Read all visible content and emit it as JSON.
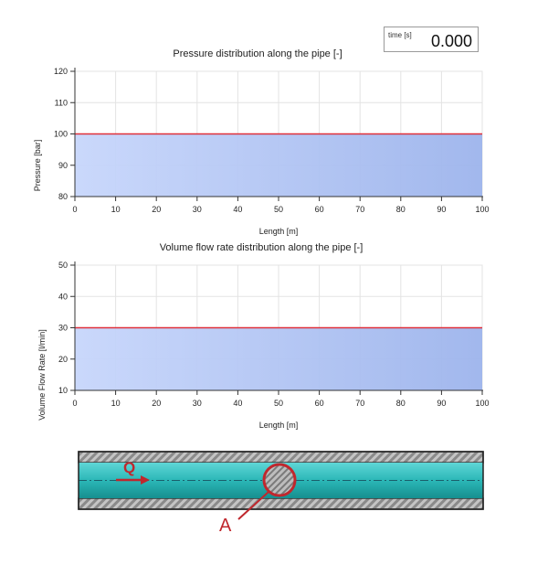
{
  "time": {
    "label": "time [s]",
    "value": "0.000"
  },
  "charts": [
    {
      "title": "Pressure distribution along the pipe [-]",
      "xlabel": "Length [m]",
      "ylabel": "Pressure [bar]"
    },
    {
      "title": "Volume flow rate distribution along the pipe [-]",
      "xlabel": "Length [m]",
      "ylabel": "Volume Flow Rate [l/min]"
    }
  ],
  "chart_data": [
    {
      "type": "area",
      "title": "Pressure distribution along the pipe [-]",
      "xlabel": "Length [m]",
      "ylabel": "Pressure [bar]",
      "xlim": [
        0,
        100
      ],
      "ylim": [
        80,
        120
      ],
      "x_ticks": [
        0,
        10,
        20,
        30,
        40,
        50,
        60,
        70,
        80,
        90,
        100
      ],
      "y_ticks": [
        80,
        90,
        100,
        110,
        120
      ],
      "grid": true,
      "series": [
        {
          "x": [
            0,
            100
          ],
          "y": [
            100,
            100
          ]
        }
      ],
      "colors": {
        "line": "#e0303a",
        "fill_start": "#c7d6fb",
        "fill_end": "#9db4ec"
      }
    },
    {
      "type": "area",
      "title": "Volume flow rate distribution along the pipe [-]",
      "xlabel": "Length [m]",
      "ylabel": "Volume Flow Rate [l/min]",
      "xlim": [
        0,
        100
      ],
      "ylim": [
        10,
        50
      ],
      "x_ticks": [
        0,
        10,
        20,
        30,
        40,
        50,
        60,
        70,
        80,
        90,
        100
      ],
      "y_ticks": [
        10,
        20,
        30,
        40,
        50
      ],
      "grid": true,
      "series": [
        {
          "x": [
            0,
            100
          ],
          "y": [
            30,
            30
          ]
        }
      ],
      "colors": {
        "line": "#e0303a",
        "fill_start": "#c7d6fb",
        "fill_end": "#9db4ec"
      }
    }
  ],
  "pipe": {
    "flow_label": "Q",
    "section_label": "A",
    "colors": {
      "fluid": "#27b3b3",
      "wall": "#a8a8a8",
      "marker": "#c0272d"
    }
  }
}
